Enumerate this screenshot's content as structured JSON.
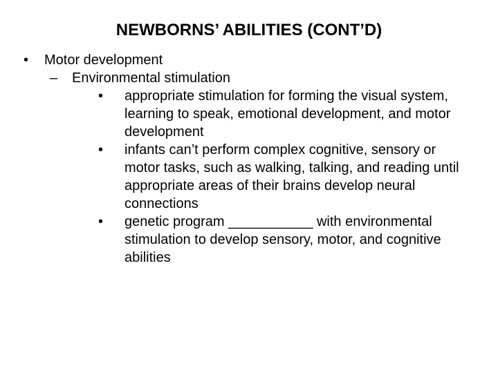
{
  "title": "NEWBORNS’ ABILITIES (CONT’D)",
  "level1": {
    "bullet": "•",
    "text": "Motor development"
  },
  "level2": {
    "bullet": "–",
    "text": "Environmental stimulation"
  },
  "level3": [
    {
      "bullet": "•",
      "text": "appropriate stimulation for forming the visual system, learning to speak, emotional development, and motor development"
    },
    {
      "bullet": "•",
      "text": "infants can’t perform complex cognitive, sensory or motor tasks, such as walking, talking, and reading until appropriate areas of their brains develop neural connections"
    },
    {
      "bullet": "•",
      "text": "genetic program ___________ with environmental stimulation to develop sensory, motor, and cognitive abilities"
    }
  ],
  "colors": {
    "background": "#ffffff",
    "text": "#000000"
  },
  "typography": {
    "title_fontsize": 24,
    "body_fontsize": 20,
    "title_weight": "bold",
    "family": "Arial"
  }
}
